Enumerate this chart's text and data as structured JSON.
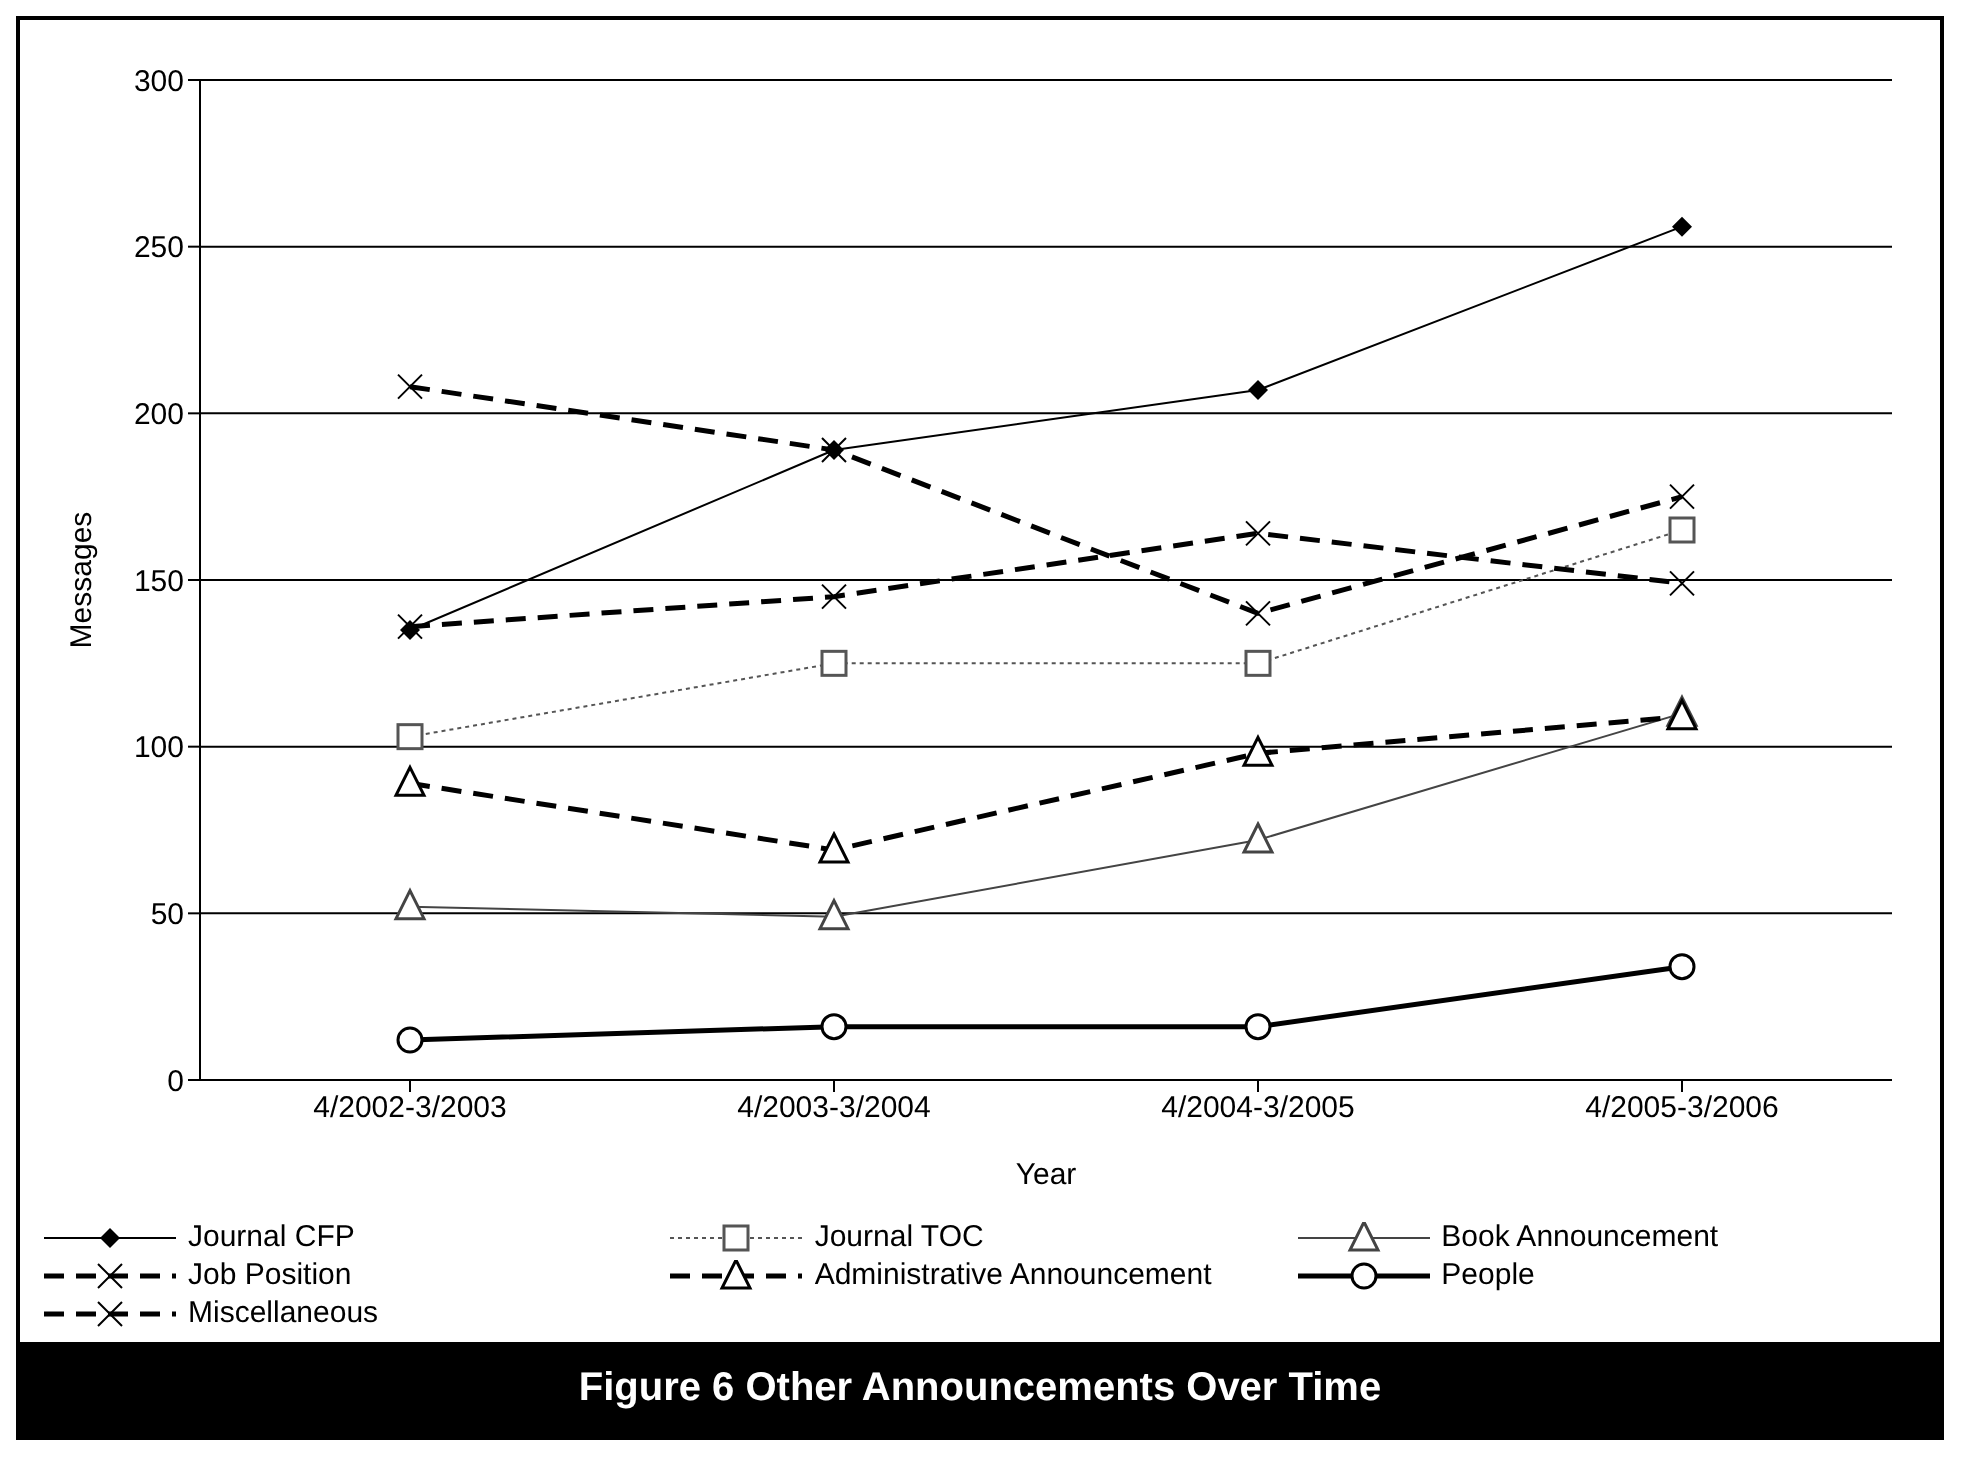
{
  "chart_data": {
    "type": "line",
    "title": "Figure 6 Other Announcements Over Time",
    "xlabel": "Year",
    "ylabel": "Messages",
    "categories": [
      "4/2002-3/2003",
      "4/2003-3/2004",
      "4/2004-3/2005",
      "4/2005-3/2006"
    ],
    "ylim": [
      0,
      300
    ],
    "yticks": [
      0,
      50,
      100,
      150,
      200,
      250,
      300
    ],
    "grid": "y",
    "legend": "bottom",
    "series": [
      {
        "name": "Journal CFP",
        "color": "#000000",
        "marker": "diamond",
        "line_style": "solid",
        "values": [
          135,
          189,
          207,
          256
        ]
      },
      {
        "name": "Journal TOC",
        "color": "#555555",
        "marker": "square",
        "line_style": "dotted",
        "values": [
          103,
          125,
          125,
          165
        ]
      },
      {
        "name": "Book Announcement",
        "color": "#444444",
        "marker": "triangle",
        "line_style": "solid",
        "values": [
          52,
          49,
          72,
          110
        ]
      },
      {
        "name": "Job Position",
        "color": "#000000",
        "marker": "cross",
        "line_style": "dashed",
        "values": [
          208,
          189,
          140,
          175
        ]
      },
      {
        "name": "Administrative Announcement",
        "color": "#000000",
        "marker": "triangle",
        "line_style": "dashed",
        "values": [
          89,
          69,
          98,
          109
        ]
      },
      {
        "name": "People",
        "color": "#000000",
        "marker": "circle",
        "line_style": "solid",
        "values": [
          12,
          16,
          16,
          34
        ]
      },
      {
        "name": "Miscellaneous",
        "color": "#000000",
        "marker": "cross",
        "line_style": "dashed",
        "values": [
          136,
          145,
          164,
          149
        ]
      }
    ]
  }
}
